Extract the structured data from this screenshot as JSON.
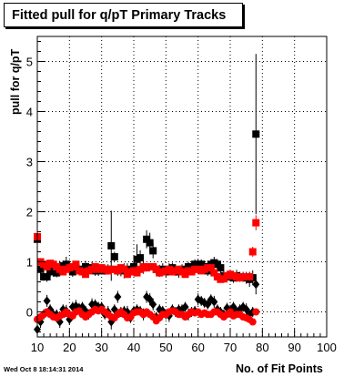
{
  "chart_data": {
    "type": "scatter",
    "title": "Fitted pull for q/pT Primary Tracks",
    "xlabel": "No. of Fit Points",
    "ylabel": "pull for q/pT",
    "xlim": [
      10,
      100
    ],
    "ylim": [
      -0.5,
      5.5
    ],
    "x_ticks": [
      "10",
      "20",
      "30",
      "40",
      "50",
      "60",
      "70",
      "80",
      "90",
      "100"
    ],
    "y_ticks": [
      "0",
      "1",
      "2",
      "3",
      "4",
      "5"
    ],
    "grid": true,
    "colors": {
      "black_series": "#000000",
      "red_series": "#ff0000"
    },
    "series": [
      {
        "marker": "square",
        "color": "#000000",
        "x": [
          10,
          11,
          12,
          13,
          14,
          15,
          16,
          17,
          18,
          19,
          20,
          21,
          22,
          23,
          24,
          25,
          26,
          27,
          28,
          29,
          30,
          31,
          32,
          33,
          34,
          35,
          36,
          37,
          38,
          39,
          40,
          41,
          42,
          43,
          44,
          45,
          46,
          47,
          48,
          49,
          50,
          51,
          52,
          53,
          54,
          55,
          56,
          57,
          58,
          59,
          60,
          61,
          62,
          63,
          64,
          65,
          66,
          67,
          68,
          69,
          70,
          71,
          72,
          73,
          74,
          75,
          76,
          77,
          78
        ],
        "y": [
          1.45,
          0.85,
          0.7,
          0.7,
          0.82,
          0.8,
          0.78,
          0.9,
          0.92,
          0.95,
          0.9,
          0.8,
          0.88,
          0.85,
          0.83,
          0.9,
          0.85,
          0.88,
          0.82,
          0.82,
          0.85,
          0.82,
          0.85,
          1.32,
          1.1,
          0.82,
          0.83,
          0.82,
          0.85,
          0.8,
          0.9,
          1.05,
          1.08,
          0.88,
          1.45,
          1.38,
          1.22,
          0.85,
          0.82,
          0.85,
          0.8,
          0.85,
          0.88,
          0.82,
          0.8,
          0.85,
          0.82,
          0.9,
          0.88,
          0.95,
          0.95,
          0.95,
          0.9,
          0.82,
          0.95,
          0.98,
          0.95,
          0.88,
          0.72,
          0.7,
          0.72,
          0.68,
          0.72,
          0.7,
          0.7,
          0.68,
          0.65,
          0.68,
          3.55
        ],
        "y_err": [
          0.05,
          0.1,
          0.08,
          0.1,
          0.12,
          0.1,
          0.09,
          0.12,
          0.1,
          0.15,
          0.12,
          0.1,
          0.12,
          0.1,
          0.1,
          0.12,
          0.1,
          0.12,
          0.1,
          0.1,
          0.1,
          0.08,
          0.1,
          0.7,
          0.1,
          0.1,
          0.12,
          0.15,
          0.12,
          0.1,
          0.12,
          0.3,
          0.15,
          0.12,
          0.18,
          0.2,
          0.15,
          0.1,
          0.12,
          0.12,
          0.1,
          0.12,
          0.1,
          0.1,
          0.12,
          0.1,
          0.12,
          0.1,
          0.12,
          0.1,
          0.1,
          0.1,
          0.12,
          0.1,
          0.1,
          0.12,
          0.1,
          0.12,
          0.1,
          0.1,
          0.1,
          0.1,
          0.12,
          0.1,
          0.1,
          0.12,
          0.15,
          0.15,
          1.6
        ]
      },
      {
        "marker": "diamond",
        "color": "#000000",
        "x": [
          10,
          11,
          12,
          13,
          14,
          15,
          16,
          17,
          18,
          19,
          20,
          21,
          22,
          23,
          24,
          25,
          26,
          27,
          28,
          29,
          30,
          31,
          32,
          33,
          34,
          35,
          36,
          37,
          38,
          39,
          40,
          41,
          42,
          43,
          44,
          45,
          46,
          47,
          48,
          49,
          50,
          51,
          52,
          53,
          54,
          55,
          56,
          57,
          58,
          59,
          60,
          61,
          62,
          63,
          64,
          65,
          66,
          67,
          68,
          69,
          70,
          71,
          72,
          73,
          74,
          75,
          76,
          77,
          78
        ],
        "y": [
          -0.35,
          -0.2,
          -0.05,
          0.22,
          0.05,
          -0.05,
          -0.05,
          -0.2,
          0.05,
          0.02,
          -0.15,
          0.1,
          0.12,
          0.08,
          0.1,
          0.02,
          -0.05,
          0.15,
          0.15,
          0.1,
          0.1,
          -0.05,
          0.0,
          -0.2,
          0.05,
          0.3,
          0.0,
          0.02,
          0.0,
          -0.12,
          0.02,
          0.05,
          0.02,
          -0.05,
          0.3,
          0.25,
          0.15,
          -0.1,
          0.05,
          0.02,
          -0.05,
          -0.08,
          0.05,
          0.0,
          0.05,
          0.05,
          0.1,
          -0.05,
          0.0,
          0.02,
          0.25,
          0.22,
          0.18,
          0.15,
          0.25,
          0.2,
          0.05,
          0.0,
          -0.05,
          0.08,
          0.02,
          0.1,
          0.0,
          0.05,
          0.1,
          0.05,
          -0.05,
          0.0,
          0.55
        ],
        "y_err": [
          0.1,
          0.12,
          0.1,
          0.12,
          0.1,
          0.1,
          0.1,
          0.12,
          0.1,
          0.12,
          0.1,
          0.1,
          0.12,
          0.1,
          0.1,
          0.1,
          0.1,
          0.12,
          0.1,
          0.1,
          0.1,
          0.1,
          0.12,
          0.15,
          0.1,
          0.12,
          0.1,
          0.1,
          0.12,
          0.1,
          0.1,
          0.1,
          0.1,
          0.12,
          0.12,
          0.12,
          0.12,
          0.1,
          0.1,
          0.1,
          0.1,
          0.12,
          0.1,
          0.1,
          0.1,
          0.1,
          0.1,
          0.12,
          0.1,
          0.1,
          0.12,
          0.1,
          0.1,
          0.1,
          0.1,
          0.12,
          0.1,
          0.1,
          0.1,
          0.1,
          0.12,
          0.1,
          0.1,
          0.1,
          0.1,
          0.12,
          0.1,
          0.1,
          0.2
        ]
      },
      {
        "marker": "square",
        "color": "#ff0000",
        "x": [
          10,
          11,
          12,
          13,
          14,
          15,
          16,
          17,
          18,
          19,
          20,
          21,
          22,
          23,
          24,
          25,
          26,
          27,
          28,
          29,
          30,
          31,
          32,
          33,
          34,
          35,
          36,
          37,
          38,
          39,
          40,
          41,
          42,
          43,
          44,
          45,
          46,
          47,
          48,
          49,
          50,
          51,
          52,
          53,
          54,
          55,
          56,
          57,
          58,
          59,
          60,
          61,
          62,
          63,
          64,
          65,
          66,
          67,
          68,
          69,
          70,
          71,
          72,
          73,
          74,
          75,
          76,
          77,
          78
        ],
        "y": [
          1.5,
          1.0,
          0.95,
          0.9,
          0.97,
          0.95,
          0.9,
          0.85,
          0.8,
          0.85,
          0.88,
          0.9,
          0.95,
          0.82,
          0.8,
          0.75,
          0.82,
          0.85,
          0.9,
          0.85,
          0.88,
          0.85,
          0.82,
          0.85,
          0.85,
          0.82,
          0.88,
          0.85,
          0.75,
          0.8,
          0.82,
          0.78,
          0.85,
          0.9,
          0.88,
          0.9,
          0.9,
          0.85,
          0.78,
          0.8,
          0.82,
          0.85,
          0.8,
          0.82,
          0.85,
          0.8,
          0.75,
          0.82,
          0.8,
          0.85,
          0.85,
          0.82,
          0.85,
          0.88,
          0.88,
          0.78,
          0.7,
          0.65,
          0.66,
          0.72,
          0.75,
          0.72,
          0.7,
          0.68,
          0.7,
          0.7,
          0.7,
          1.2,
          1.78
        ],
        "y_err": [
          0.05,
          0.05,
          0.05,
          0.05,
          0.05,
          0.05,
          0.05,
          0.05,
          0.05,
          0.05,
          0.05,
          0.05,
          0.05,
          0.05,
          0.05,
          0.05,
          0.05,
          0.05,
          0.05,
          0.05,
          0.05,
          0.05,
          0.05,
          0.05,
          0.05,
          0.05,
          0.05,
          0.05,
          0.05,
          0.05,
          0.05,
          0.05,
          0.05,
          0.05,
          0.05,
          0.05,
          0.05,
          0.05,
          0.05,
          0.05,
          0.05,
          0.05,
          0.05,
          0.05,
          0.05,
          0.05,
          0.05,
          0.05,
          0.05,
          0.05,
          0.05,
          0.05,
          0.05,
          0.05,
          0.05,
          0.05,
          0.05,
          0.05,
          0.05,
          0.05,
          0.05,
          0.05,
          0.05,
          0.05,
          0.05,
          0.05,
          0.05,
          0.1,
          0.15
        ]
      },
      {
        "marker": "circle",
        "color": "#ff0000",
        "x": [
          10,
          11,
          12,
          13,
          14,
          15,
          16,
          17,
          18,
          19,
          20,
          21,
          22,
          23,
          24,
          25,
          26,
          27,
          28,
          29,
          30,
          31,
          32,
          33,
          34,
          35,
          36,
          37,
          38,
          39,
          40,
          41,
          42,
          43,
          44,
          45,
          46,
          47,
          48,
          49,
          50,
          51,
          52,
          53,
          54,
          55,
          56,
          57,
          58,
          59,
          60,
          61,
          62,
          63,
          64,
          65,
          66,
          67,
          68,
          69,
          70,
          71,
          72,
          73,
          74,
          75,
          76,
          77,
          78
        ],
        "y": [
          -0.15,
          -0.1,
          -0.05,
          0.0,
          -0.05,
          -0.1,
          -0.12,
          -0.08,
          -0.05,
          0.0,
          -0.05,
          -0.08,
          0.0,
          0.02,
          -0.05,
          -0.1,
          -0.05,
          0.0,
          0.05,
          0.02,
          0.05,
          0.0,
          -0.05,
          -0.1,
          -0.12,
          -0.05,
          0.0,
          -0.05,
          -0.12,
          -0.1,
          -0.02,
          0.0,
          0.0,
          -0.05,
          0.0,
          -0.05,
          -0.1,
          -0.18,
          -0.12,
          -0.05,
          -0.05,
          0.0,
          0.02,
          0.0,
          -0.05,
          -0.05,
          -0.1,
          -0.05,
          0.0,
          -0.02,
          0.0,
          -0.05,
          -0.02,
          -0.05,
          -0.05,
          0.0,
          0.0,
          -0.05,
          -0.1,
          -0.05,
          0.0,
          -0.08,
          -0.05,
          -0.05,
          -0.1,
          -0.12,
          -0.15,
          -0.2,
          0.0
        ],
        "y_err": [
          0.05,
          0.05,
          0.05,
          0.05,
          0.05,
          0.05,
          0.05,
          0.05,
          0.05,
          0.05,
          0.05,
          0.05,
          0.05,
          0.05,
          0.05,
          0.05,
          0.05,
          0.05,
          0.05,
          0.05,
          0.05,
          0.05,
          0.05,
          0.05,
          0.05,
          0.05,
          0.05,
          0.05,
          0.05,
          0.05,
          0.05,
          0.05,
          0.05,
          0.05,
          0.05,
          0.05,
          0.05,
          0.05,
          0.05,
          0.05,
          0.05,
          0.05,
          0.05,
          0.05,
          0.05,
          0.05,
          0.05,
          0.05,
          0.05,
          0.05,
          0.05,
          0.05,
          0.05,
          0.05,
          0.05,
          0.05,
          0.05,
          0.05,
          0.05,
          0.05,
          0.05,
          0.05,
          0.05,
          0.05,
          0.05,
          0.05,
          0.05,
          0.05,
          0.05
        ]
      }
    ]
  },
  "footer": {
    "timestamp": "Wed Oct  8 18:14:31 2014"
  }
}
